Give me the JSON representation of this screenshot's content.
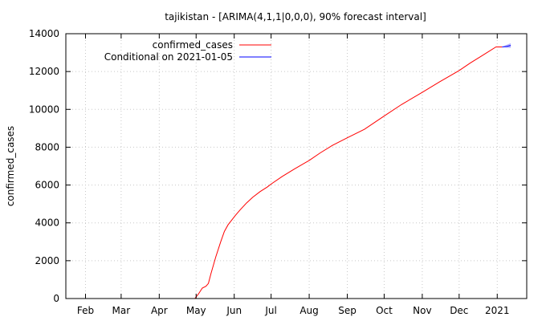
{
  "chart_data": {
    "type": "line",
    "title": "tajikistan -  [ARIMA(4,1,1|0,0,0), 90% forecast interval]",
    "xlabel": "",
    "ylabel": "confirmed_cases",
    "ylim": [
      0,
      14000
    ],
    "yticks": [
      0,
      2000,
      4000,
      6000,
      8000,
      10000,
      12000,
      14000
    ],
    "xlim": [
      "2020-01-16",
      "2021-01-25"
    ],
    "xticks": [
      {
        "label": "Feb",
        "date": "2020-02-01"
      },
      {
        "label": "Mar",
        "date": "2020-03-01"
      },
      {
        "label": "Apr",
        "date": "2020-04-01"
      },
      {
        "label": "May",
        "date": "2020-05-01"
      },
      {
        "label": "Jun",
        "date": "2020-06-01"
      },
      {
        "label": "Jul",
        "date": "2020-07-01"
      },
      {
        "label": "Aug",
        "date": "2020-08-01"
      },
      {
        "label": "Sep",
        "date": "2020-09-01"
      },
      {
        "label": "Oct",
        "date": "2020-10-01"
      },
      {
        "label": "Nov",
        "date": "2020-11-01"
      },
      {
        "label": "Dec",
        "date": "2020-12-01"
      },
      {
        "label": "2021",
        "date": "2021-01-01"
      }
    ],
    "grid": true,
    "legend": "top-left",
    "series": [
      {
        "name": "confirmed_cases",
        "color": "#ff0000",
        "x": [
          "2020-04-30",
          "2020-05-03",
          "2020-05-06",
          "2020-05-09",
          "2020-05-11",
          "2020-05-13",
          "2020-05-17",
          "2020-05-21",
          "2020-05-24",
          "2020-05-27",
          "2020-05-30",
          "2020-06-02",
          "2020-06-06",
          "2020-06-11",
          "2020-06-16",
          "2020-06-22",
          "2020-06-28",
          "2020-07-01",
          "2020-07-10",
          "2020-07-20",
          "2020-08-01",
          "2020-08-10",
          "2020-08-20",
          "2020-09-01",
          "2020-09-15",
          "2020-10-01",
          "2020-10-15",
          "2020-11-01",
          "2020-11-15",
          "2020-12-01",
          "2020-12-10",
          "2020-12-20",
          "2020-12-31",
          "2021-01-05"
        ],
        "y": [
          0,
          250,
          550,
          650,
          800,
          1300,
          2200,
          3000,
          3550,
          3900,
          4150,
          4400,
          4700,
          5050,
          5350,
          5650,
          5900,
          6050,
          6450,
          6850,
          7300,
          7700,
          8100,
          8500,
          8950,
          9650,
          10250,
          10900,
          11450,
          12050,
          12450,
          12850,
          13300,
          13300
        ]
      },
      {
        "name": "Conditional on 2021-01-05",
        "color": "#0000ff",
        "x": [
          "2021-01-05",
          "2021-01-09",
          "2021-01-12"
        ],
        "y": [
          13300,
          13330,
          13380
        ]
      }
    ],
    "interval": {
      "color": "#b8b8ff",
      "x": [
        "2021-01-05",
        "2021-01-09",
        "2021-01-12"
      ],
      "lower": [
        13300,
        13250,
        13250
      ],
      "upper": [
        13300,
        13420,
        13500
      ]
    }
  }
}
